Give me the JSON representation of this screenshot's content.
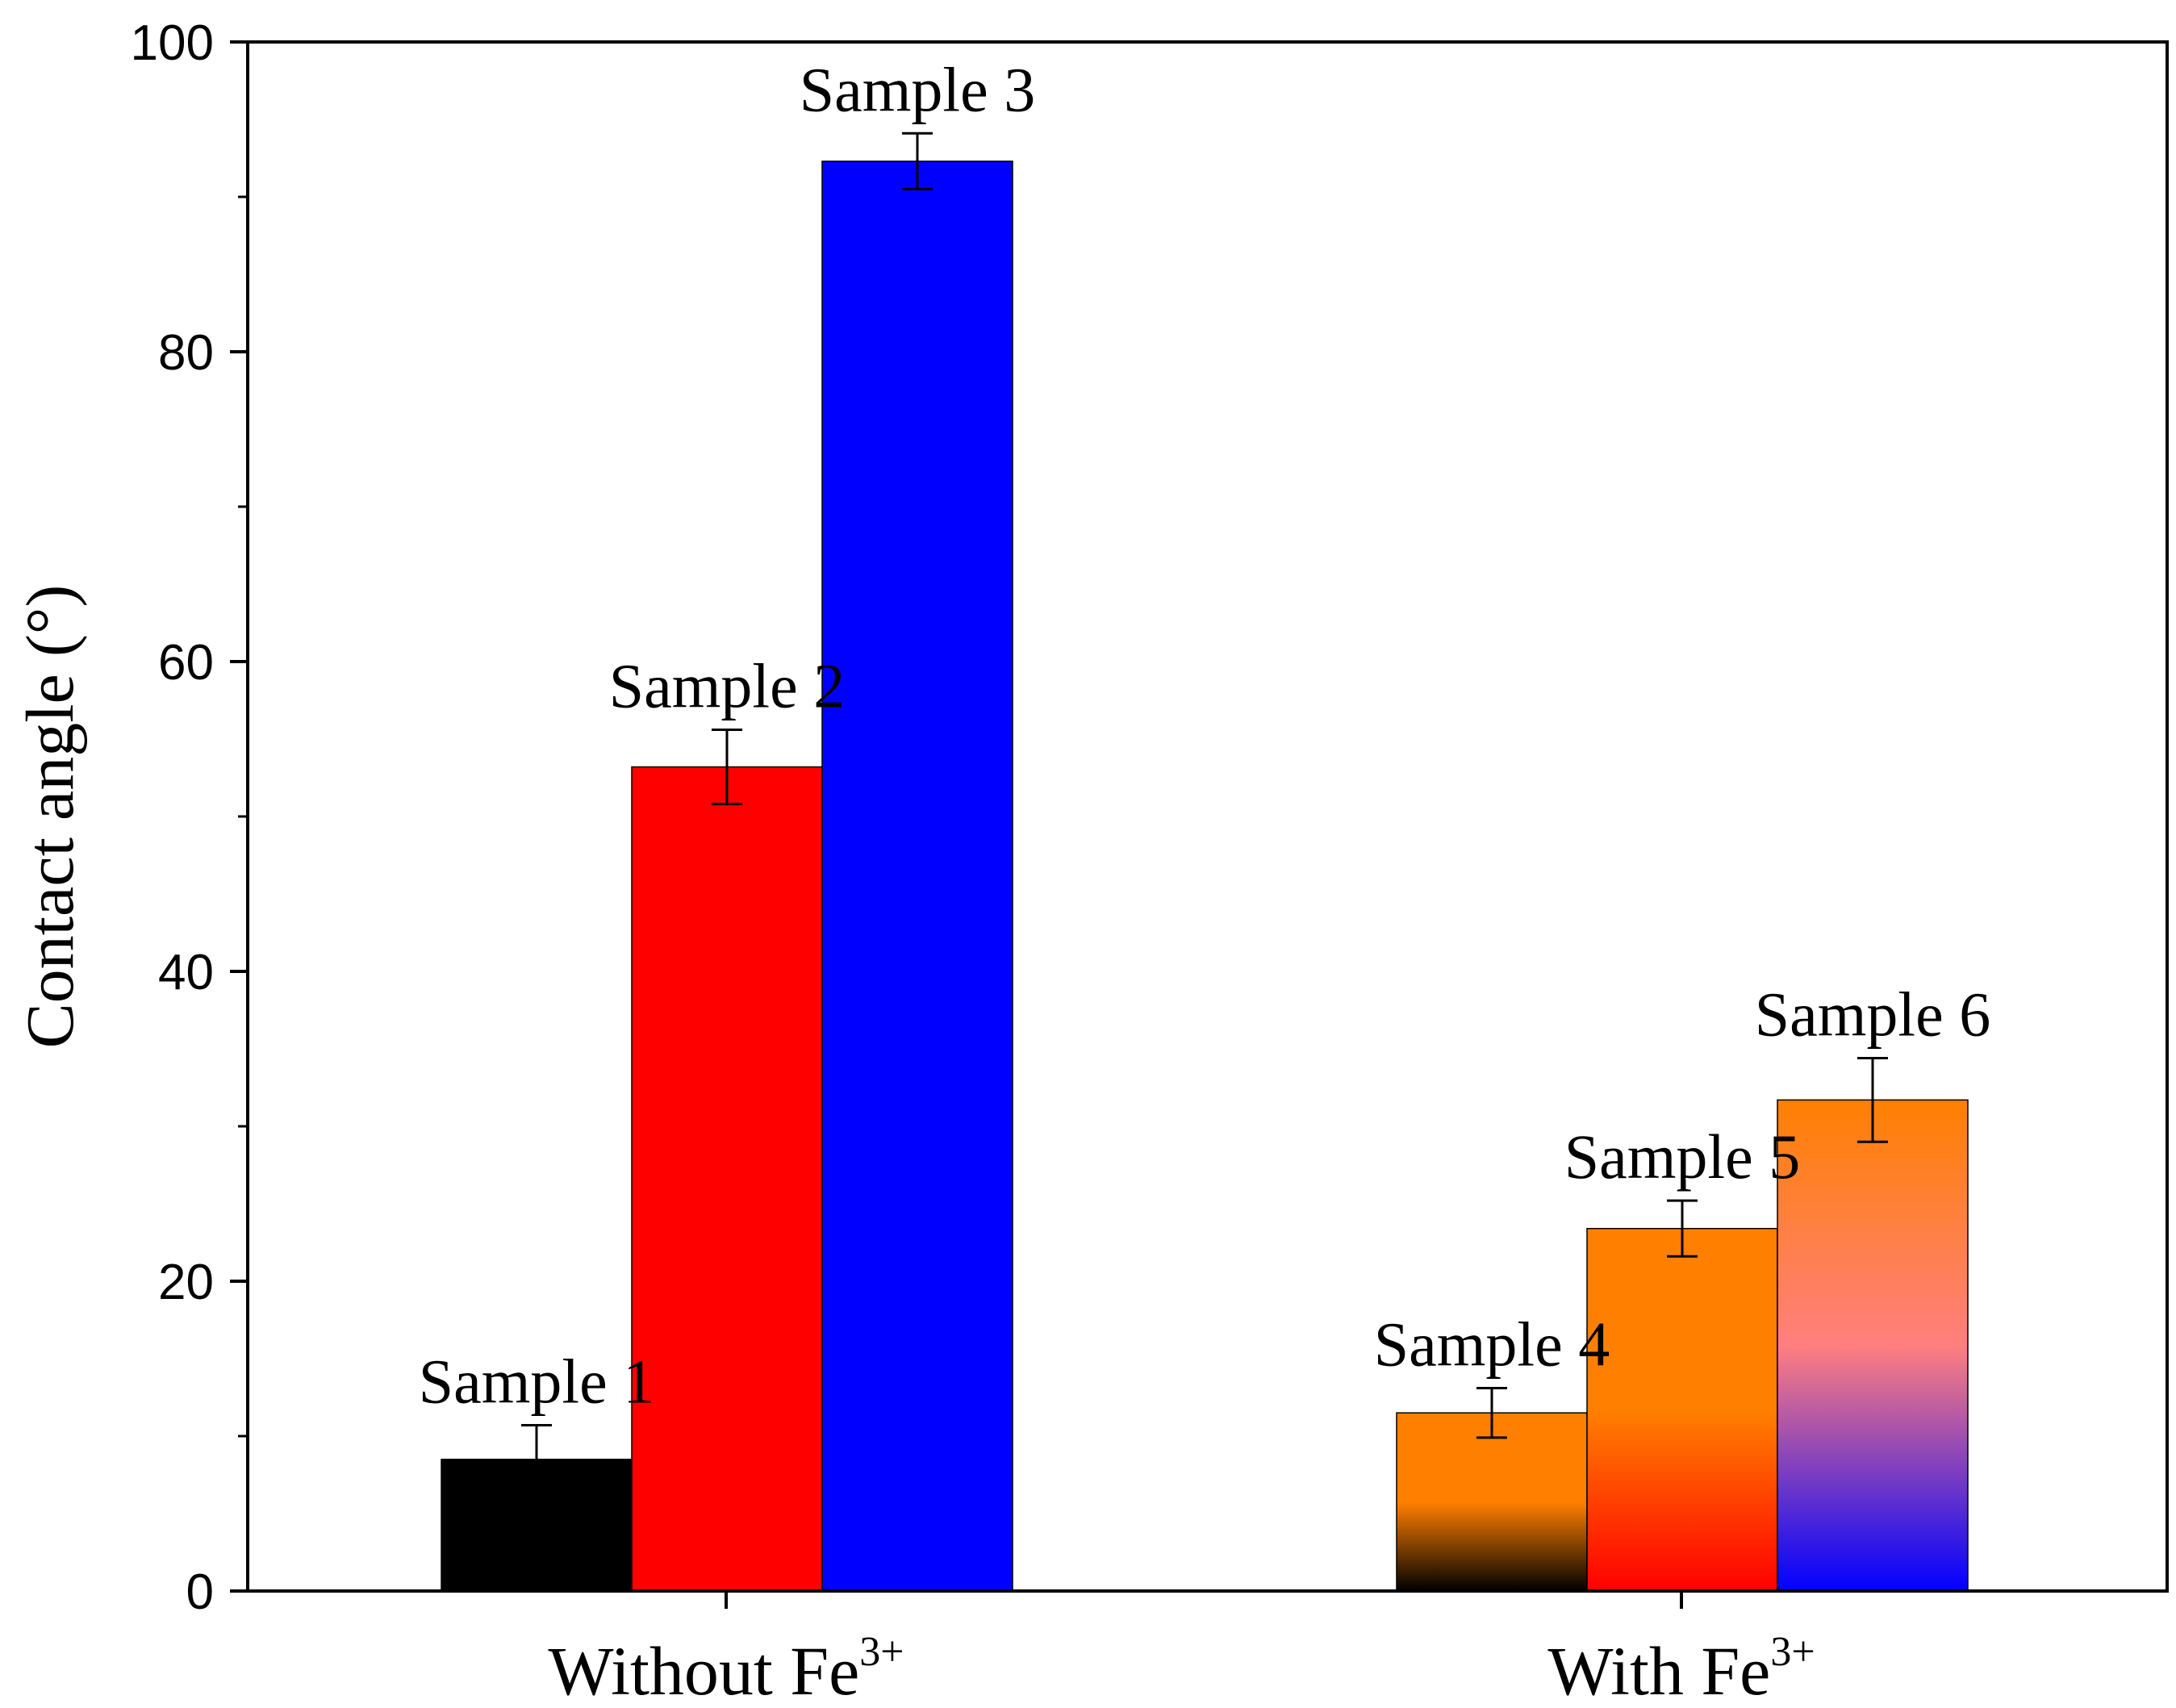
{
  "chart_data": {
    "type": "bar",
    "title": "",
    "xlabel": "",
    "ylabel": "Contact angle (°)",
    "ylim": [
      0,
      100
    ],
    "yticks_major": [
      0,
      20,
      40,
      60,
      80,
      100
    ],
    "yticks_minor": [
      10,
      30,
      50,
      70,
      90
    ],
    "grid": false,
    "groups": [
      {
        "label": "Without Fe",
        "superscript": "3+"
      },
      {
        "label": "With Fe",
        "superscript": "3+"
      }
    ],
    "series": [
      {
        "name": "Sample 1",
        "group": 0,
        "value": 8.5,
        "error": 2.2,
        "fill": "solid",
        "colors": [
          "#000000"
        ]
      },
      {
        "name": "Sample 2",
        "group": 0,
        "value": 53.2,
        "error": 2.4,
        "fill": "solid",
        "colors": [
          "#ff0000"
        ]
      },
      {
        "name": "Sample 3",
        "group": 0,
        "value": 92.3,
        "error": 1.8,
        "fill": "solid",
        "colors": [
          "#0000ff"
        ]
      },
      {
        "name": "Sample 4",
        "group": 1,
        "value": 11.5,
        "error": 1.6,
        "fill": "gradient",
        "colors": [
          "#000000",
          "#ff8000",
          "#ff8000"
        ]
      },
      {
        "name": "Sample 5",
        "group": 1,
        "value": 23.4,
        "error": 1.8,
        "fill": "gradient",
        "colors": [
          "#ff0000",
          "#ff8000",
          "#ff8000"
        ]
      },
      {
        "name": "Sample 6",
        "group": 1,
        "value": 31.7,
        "error": 2.7,
        "fill": "gradient",
        "colors": [
          "#0000ff",
          "#ff7f7f",
          "#ff8000"
        ]
      }
    ]
  }
}
